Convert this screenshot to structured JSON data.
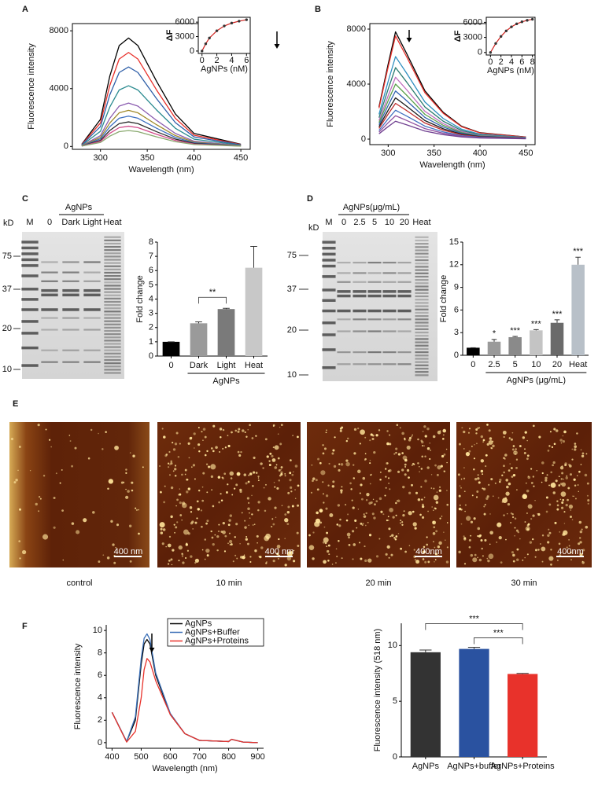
{
  "panel_letters": [
    "A",
    "B",
    "C",
    "D",
    "E",
    "F"
  ],
  "gels": [
    {
      "unit": "kD",
      "markers": [
        "75",
        "37",
        "20",
        "10"
      ],
      "lanes": [
        "M",
        "0",
        "Dark",
        "Light",
        "Heat"
      ],
      "group": "AgNPs"
    },
    {
      "unit": "kD",
      "markers": [
        "75",
        "37",
        "20",
        "10"
      ],
      "lanes": [
        "M",
        "0",
        "2.5",
        "5",
        "10",
        "20",
        "Heat"
      ],
      "group": "AgNPs(μg/mL)"
    }
  ],
  "afm": {
    "labels": [
      "control",
      "10 min",
      "20 min",
      "30 min"
    ],
    "scale_bars": [
      "400 nm",
      "400 nm",
      "400nm",
      "400nm"
    ]
  },
  "chart_data": [
    {
      "type": "line",
      "frame": true,
      "xlabel": "Wavelength (nm)",
      "ylabel": "Fluorescence intensity",
      "x": [
        280,
        300,
        310,
        320,
        330,
        340,
        360,
        380,
        400,
        450
      ],
      "xlim": [
        270,
        460
      ],
      "xticks": [
        300,
        350,
        400,
        450
      ],
      "ylim": [
        -200,
        8500
      ],
      "yticks": [
        0,
        4000,
        8000
      ],
      "series": [
        {
          "color": "#000000",
          "values": [
            150,
            1875,
            4875,
            6975,
            7500,
            6975,
            4500,
            2250,
            900,
            150
          ]
        },
        {
          "color": "#e8302a",
          "values": [
            130,
            1625,
            4225,
            6045,
            6500,
            6045,
            3900,
            1950,
            780,
            130
          ]
        },
        {
          "color": "#2f5fa8",
          "values": [
            110,
            1375,
            3575,
            5115,
            5500,
            5115,
            3300,
            1650,
            660,
            110
          ]
        },
        {
          "color": "#2a8a8f",
          "values": [
            84,
            1050,
            2730,
            3906,
            4200,
            3906,
            2520,
            1260,
            504,
            84
          ]
        },
        {
          "color": "#8b5db0",
          "values": [
            60,
            750,
            1950,
            2790,
            3000,
            2790,
            1800,
            900,
            360,
            60
          ]
        },
        {
          "color": "#a08a2a",
          "values": [
            50,
            625,
            1625,
            2325,
            2500,
            2325,
            1500,
            750,
            300,
            50
          ]
        },
        {
          "color": "#3d6fc0",
          "values": [
            42,
            525,
            1365,
            1953,
            2100,
            1953,
            1260,
            630,
            252,
            42
          ]
        },
        {
          "color": "#2b2b2b",
          "values": [
            34,
            425,
            1105,
            1581,
            1700,
            1581,
            1020,
            510,
            204,
            34
          ]
        },
        {
          "color": "#d24a8a",
          "values": [
            28,
            350,
            910,
            1302,
            1400,
            1302,
            840,
            420,
            168,
            28
          ]
        },
        {
          "color": "#8aaa70",
          "values": [
            22,
            275,
            715,
            1023,
            1100,
            1023,
            660,
            330,
            132,
            22
          ]
        }
      ]
    },
    {
      "type": "scatter",
      "frame": true,
      "xlabel": "AgNPs (nM)",
      "ylabel": "ΔF",
      "x": [
        0,
        0.5,
        1,
        2,
        3,
        4,
        5,
        6
      ],
      "xlim": [
        -0.5,
        6.5
      ],
      "xticks": [
        0,
        2,
        4,
        6
      ],
      "ylim": [
        -500,
        7000
      ],
      "yticks": [
        0,
        3000,
        6000
      ],
      "series": [
        {
          "color": "#d0201c",
          "marker_color": "#333333",
          "values": [
            0,
            1500,
            2700,
            4200,
            5200,
            5800,
            6200,
            6500
          ]
        }
      ]
    },
    {
      "type": "line",
      "frame": true,
      "xlabel": "Wavelength (nm)",
      "ylabel": "Fluorescence intensity",
      "x": [
        290,
        300,
        308,
        320,
        340,
        360,
        380,
        400,
        450
      ],
      "xlim": [
        280,
        460
      ],
      "xticks": [
        300,
        350,
        400,
        450
      ],
      "ylim": [
        -400,
        8400
      ],
      "yticks": [
        0,
        4000,
        8000
      ],
      "series": [
        {
          "color": "#000000",
          "values": [
            2340,
            5460,
            7800,
            6240,
            3510,
            1950,
            936,
            468,
            156
          ]
        },
        {
          "color": "#e8302a",
          "values": [
            2250,
            5250,
            7500,
            6000,
            3375,
            1875,
            900,
            450,
            150
          ]
        },
        {
          "color": "#2f8fc0",
          "values": [
            1800,
            4200,
            6000,
            4800,
            2700,
            1500,
            720,
            360,
            120
          ]
        },
        {
          "color": "#2a7a6f",
          "values": [
            1560,
            3640,
            5200,
            4160,
            2340,
            1300,
            624,
            312,
            104
          ]
        },
        {
          "color": "#c070c0",
          "values": [
            1350,
            3150,
            4500,
            3600,
            2025,
            1125,
            540,
            270,
            90
          ]
        },
        {
          "color": "#5a9f4a",
          "values": [
            1200,
            2800,
            4000,
            3200,
            1800,
            1000,
            480,
            240,
            80
          ]
        },
        {
          "color": "#3060b0",
          "values": [
            1050,
            2450,
            3500,
            2800,
            1575,
            875,
            420,
            210,
            70
          ]
        },
        {
          "color": "#1a1a1a",
          "values": [
            900,
            2100,
            3000,
            2400,
            1350,
            750,
            360,
            180,
            60
          ]
        },
        {
          "color": "#c03030",
          "values": [
            780,
            1820,
            2600,
            2080,
            1170,
            650,
            312,
            156,
            52
          ]
        },
        {
          "color": "#4070c0",
          "values": [
            630,
            1470,
            2100,
            1680,
            945,
            525,
            252,
            126,
            42
          ]
        },
        {
          "color": "#9050a0",
          "values": [
            510,
            1190,
            1700,
            1360,
            765,
            425,
            204,
            102,
            34
          ]
        },
        {
          "color": "#704090",
          "values": [
            390,
            910,
            1300,
            1040,
            585,
            325,
            156,
            78,
            26
          ]
        }
      ]
    },
    {
      "type": "scatter",
      "frame": true,
      "xlabel": "AgNPs (nM)",
      "ylabel": "ΔF",
      "x": [
        0,
        1,
        2,
        3,
        4,
        5,
        6,
        7,
        8
      ],
      "xlim": [
        -0.8,
        8.5
      ],
      "xticks": [
        0,
        2,
        4,
        6,
        8
      ],
      "ylim": [
        -500,
        7000
      ],
      "yticks": [
        0,
        3000,
        6000
      ],
      "series": [
        {
          "color": "#d0201c",
          "marker_color": "#333333",
          "values": [
            0,
            1800,
            3200,
            4300,
            5100,
            5700,
            6100,
            6400,
            6600
          ]
        }
      ]
    },
    {
      "type": "bar",
      "frame": false,
      "ylabel": "Fold change",
      "group_label": "AgNPs",
      "categories": [
        "0",
        "Dark",
        "Light",
        "Heat"
      ],
      "values": [
        1,
        2.3,
        3.3,
        6.2
      ],
      "errors": [
        0,
        0.1,
        0.05,
        1.5
      ],
      "colors": [
        "#000000",
        "#9a9a9a",
        "#7a7a7a",
        "#c8c8c8"
      ],
      "annotations": [
        "**"
      ],
      "ylim": [
        0,
        8
      ],
      "yticks": [
        0,
        1,
        2,
        3,
        4,
        5,
        6,
        7,
        8
      ]
    },
    {
      "type": "bar",
      "frame": false,
      "ylabel": "Fold change",
      "group_label": "AgNPs (μg/mL)",
      "categories": [
        "0",
        "2.5",
        "5",
        "10",
        "20",
        "Heat"
      ],
      "values": [
        1,
        1.8,
        2.4,
        3.3,
        4.3,
        12
      ],
      "errors": [
        0,
        0.3,
        0.1,
        0.1,
        0.4,
        1
      ],
      "colors": [
        "#000000",
        "#9a9a9a",
        "#8a8a8a",
        "#c4c4c4",
        "#6a6a6a",
        "#b8c0c8"
      ],
      "significance": [
        null,
        "*",
        "***",
        "***",
        "***",
        "***"
      ],
      "ylim": [
        0,
        15
      ],
      "yticks": [
        0,
        3,
        6,
        9,
        12,
        15
      ]
    },
    {
      "type": "line",
      "frame": false,
      "xlabel": "Wavelength (nm)",
      "ylabel": "Fluorescence intensity",
      "legend": "upper right",
      "x": [
        400,
        450,
        480,
        500,
        510,
        520,
        530,
        550,
        600,
        650,
        700,
        800,
        810,
        850,
        900
      ],
      "xlim": [
        380,
        920
      ],
      "xticks": [
        400,
        500,
        600,
        700,
        800,
        900
      ],
      "ylim": [
        -0.5,
        10.5
      ],
      "yticks": [
        0,
        2,
        4,
        6,
        8,
        10
      ],
      "series": [
        {
          "name": "AgNPs",
          "color": "#000000",
          "values": [
            2.7,
            0.1,
            2,
            7,
            8.8,
            9.2,
            8.8,
            6,
            2.5,
            0.8,
            0.2,
            0.1,
            0.3,
            0.05,
            0
          ]
        },
        {
          "name": "AgNPs+Buffer",
          "color": "#3a6fb7",
          "values": [
            2.7,
            0.1,
            2.3,
            7.5,
            9.3,
            9.7,
            9.2,
            6.2,
            2.6,
            0.8,
            0.2,
            0.1,
            0.3,
            0.05,
            0
          ]
        },
        {
          "name": "AgNPs+Proteins",
          "color": "#e8322b",
          "values": [
            2.7,
            0.05,
            1,
            4,
            6.5,
            7.5,
            7.2,
            5.5,
            2.5,
            0.8,
            0.2,
            0.1,
            0.3,
            0.05,
            0
          ]
        }
      ]
    },
    {
      "type": "bar",
      "frame": false,
      "ylabel": "Fluorescence intensity (518 nm)",
      "categories": [
        "AgNPs",
        "AgNPs+buffer",
        "AgNPs+Proteins"
      ],
      "values": [
        9.4,
        9.7,
        7.45
      ],
      "errors": [
        0.2,
        0.15,
        0.05
      ],
      "colors": [
        "#333333",
        "#2a52a0",
        "#e8322b"
      ],
      "annotations": [
        "***",
        "***"
      ],
      "ylim": [
        0,
        12
      ],
      "yticks": [
        0,
        5,
        10
      ]
    }
  ]
}
